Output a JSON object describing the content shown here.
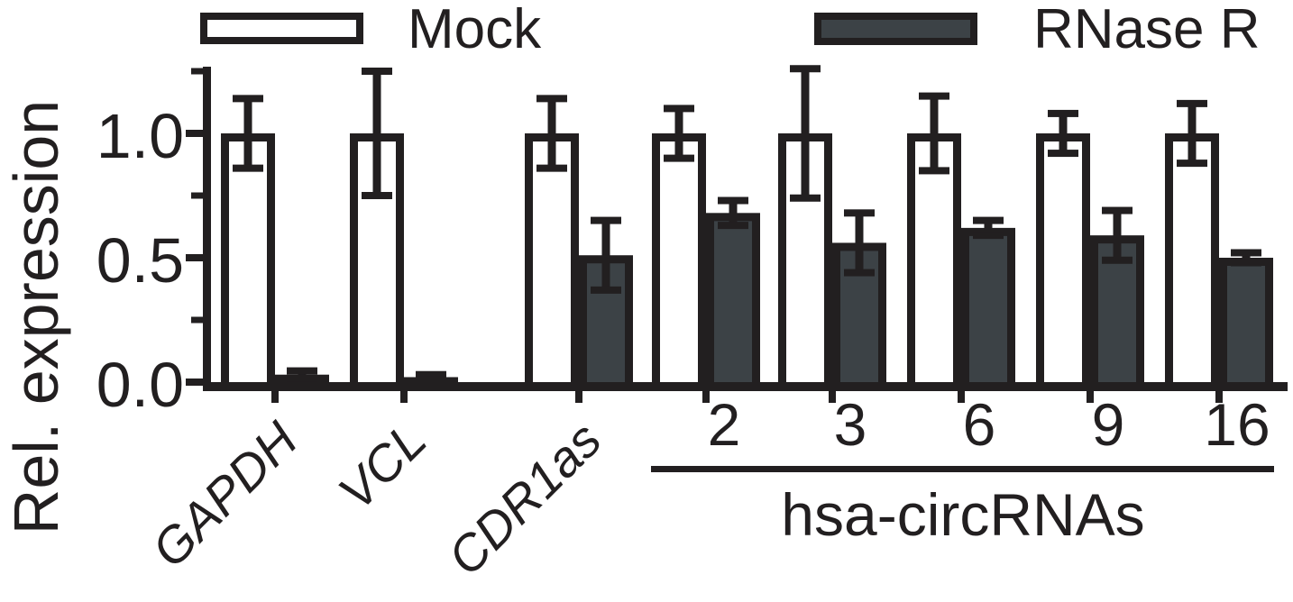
{
  "figure": {
    "background": "#ffffff",
    "ink_color": "#221f20",
    "dark_fill": "#3c4246",
    "light_fill": "#ffffff"
  },
  "chart_data": {
    "type": "bar",
    "title": "",
    "ylabel": "Rel. expression",
    "ylim": [
      0,
      1.26
    ],
    "yticks": [
      0.0,
      0.5,
      1.0
    ],
    "ytick_labels": [
      "0.0",
      "0.5",
      "1.0"
    ],
    "yticks_minor": [
      0.25,
      0.75,
      1.25
    ],
    "grid": false,
    "legend_position": "top",
    "error_bars": true,
    "categories": [
      "GAPDH",
      "VCL",
      "CDR1as",
      "2",
      "3",
      "6",
      "9",
      "16"
    ],
    "category_font_styles": [
      "italic",
      "italic",
      "italic",
      "normal",
      "normal",
      "normal",
      "normal",
      "normal"
    ],
    "group_bracket": {
      "label": "hsa-circRNAs",
      "members": [
        "2",
        "3",
        "6",
        "9",
        "16"
      ]
    },
    "series": [
      {
        "name": "Mock",
        "fill": "#ffffff",
        "values": [
          1.0,
          1.0,
          1.0,
          1.0,
          1.0,
          1.0,
          1.0,
          1.0
        ],
        "errors": [
          0.14,
          0.25,
          0.14,
          0.1,
          0.26,
          0.15,
          0.08,
          0.12
        ]
      },
      {
        "name": "RNase R",
        "fill": "#3c4246",
        "values": [
          0.03,
          0.02,
          0.51,
          0.68,
          0.56,
          0.62,
          0.59,
          0.5
        ],
        "errors": [
          0.015,
          0.01,
          0.14,
          0.05,
          0.12,
          0.03,
          0.1,
          0.02
        ]
      }
    ]
  }
}
